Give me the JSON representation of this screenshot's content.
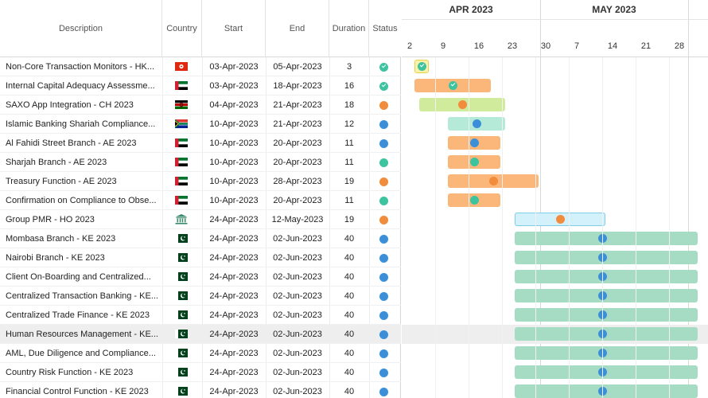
{
  "columns": {
    "description": "Description",
    "country": "Country",
    "start": "Start",
    "end": "End",
    "duration": "Duration",
    "status": "Status"
  },
  "timeline": {
    "months": [
      "APR 2023",
      "MAY 2023"
    ],
    "days": [
      "2",
      "9",
      "16",
      "23",
      "30",
      "7",
      "14",
      "21",
      "28"
    ]
  },
  "colors": {
    "status_green": "#3cc3a0",
    "status_orange": "#f08c3c",
    "status_blue": "#3a8fd8",
    "bar_orange": "#fbb679",
    "bar_lime": "#d1eb9c",
    "bar_mint": "#b5ead8",
    "bar_lightblue": "#d2f1fb",
    "bar_green": "#a6dcc4",
    "bar_yellow": "#fbf2a8"
  },
  "rows": [
    {
      "description": "Non-Core Transaction Monitors - HK...",
      "country_flag": "hong-kong-flag-icon",
      "start": "03-Apr-2023",
      "end": "05-Apr-2023",
      "duration": "3",
      "status": "completed",
      "bar_color": "bar_yellow"
    },
    {
      "description": "Internal Capital Adequacy Assessme...",
      "country_flag": "uae-flag-icon",
      "start": "03-Apr-2023",
      "end": "18-Apr-2023",
      "duration": "16",
      "status": "completed",
      "bar_color": "bar_orange"
    },
    {
      "description": "SAXO App Integration - CH 2023",
      "country_flag": "kenya-flag-icon",
      "start": "04-Apr-2023",
      "end": "21-Apr-2023",
      "duration": "18",
      "status": "in-progress",
      "bar_color": "bar_lime"
    },
    {
      "description": "Islamic Banking Shariah Compliance...",
      "country_flag": "south-africa-flag-icon",
      "start": "10-Apr-2023",
      "end": "21-Apr-2023",
      "duration": "12",
      "status": "planned",
      "bar_color": "bar_mint"
    },
    {
      "description": "Al Fahidi Street Branch - AE 2023",
      "country_flag": "uae-flag-icon",
      "start": "10-Apr-2023",
      "end": "20-Apr-2023",
      "duration": "11",
      "status": "planned",
      "bar_color": "bar_orange"
    },
    {
      "description": "Sharjah Branch - AE 2023",
      "country_flag": "uae-flag-icon",
      "start": "10-Apr-2023",
      "end": "20-Apr-2023",
      "duration": "11",
      "status": "active",
      "bar_color": "bar_orange"
    },
    {
      "description": "Treasury Function - AE 2023",
      "country_flag": "uae-flag-icon",
      "start": "10-Apr-2023",
      "end": "28-Apr-2023",
      "duration": "19",
      "status": "in-progress",
      "bar_color": "bar_orange"
    },
    {
      "description": "Confirmation on Compliance to Obse...",
      "country_flag": "uae-flag-icon",
      "start": "10-Apr-2023",
      "end": "20-Apr-2023",
      "duration": "11",
      "status": "active",
      "bar_color": "bar_orange"
    },
    {
      "description": "Group PMR - HO 2023",
      "country_flag": "bank-icon",
      "start": "24-Apr-2023",
      "end": "12-May-2023",
      "duration": "19",
      "status": "in-progress",
      "bar_color": "bar_lightblue"
    },
    {
      "description": "Mombasa Branch - KE 2023",
      "country_flag": "pakistan-flag-icon",
      "start": "24-Apr-2023",
      "end": "02-Jun-2023",
      "duration": "40",
      "status": "planned",
      "bar_color": "bar_green"
    },
    {
      "description": "Nairobi Branch - KE 2023",
      "country_flag": "pakistan-flag-icon",
      "start": "24-Apr-2023",
      "end": "02-Jun-2023",
      "duration": "40",
      "status": "planned",
      "bar_color": "bar_green"
    },
    {
      "description": "Client On-Boarding and Centralized...",
      "country_flag": "pakistan-flag-icon",
      "start": "24-Apr-2023",
      "end": "02-Jun-2023",
      "duration": "40",
      "status": "planned",
      "bar_color": "bar_green"
    },
    {
      "description": "Centralized Transaction Banking - KE...",
      "country_flag": "pakistan-flag-icon",
      "start": "24-Apr-2023",
      "end": "02-Jun-2023",
      "duration": "40",
      "status": "planned",
      "bar_color": "bar_green"
    },
    {
      "description": "Centralized Trade Finance - KE 2023",
      "country_flag": "pakistan-flag-icon",
      "start": "24-Apr-2023",
      "end": "02-Jun-2023",
      "duration": "40",
      "status": "planned",
      "bar_color": "bar_green"
    },
    {
      "description": "Human Resources Management - KE...",
      "country_flag": "pakistan-flag-icon",
      "start": "24-Apr-2023",
      "end": "02-Jun-2023",
      "duration": "40",
      "status": "planned",
      "bar_color": "bar_green",
      "highlighted": true
    },
    {
      "description": "AML, Due Diligence and Compliance...",
      "country_flag": "pakistan-flag-icon",
      "start": "24-Apr-2023",
      "end": "02-Jun-2023",
      "duration": "40",
      "status": "planned",
      "bar_color": "bar_green"
    },
    {
      "description": "Country Risk Function - KE 2023",
      "country_flag": "pakistan-flag-icon",
      "start": "24-Apr-2023",
      "end": "02-Jun-2023",
      "duration": "40",
      "status": "planned",
      "bar_color": "bar_green"
    },
    {
      "description": "Financial Control Function - KE 2023",
      "country_flag": "pakistan-flag-icon",
      "start": "24-Apr-2023",
      "end": "02-Jun-2023",
      "duration": "40",
      "status": "planned",
      "bar_color": "bar_green"
    }
  ]
}
